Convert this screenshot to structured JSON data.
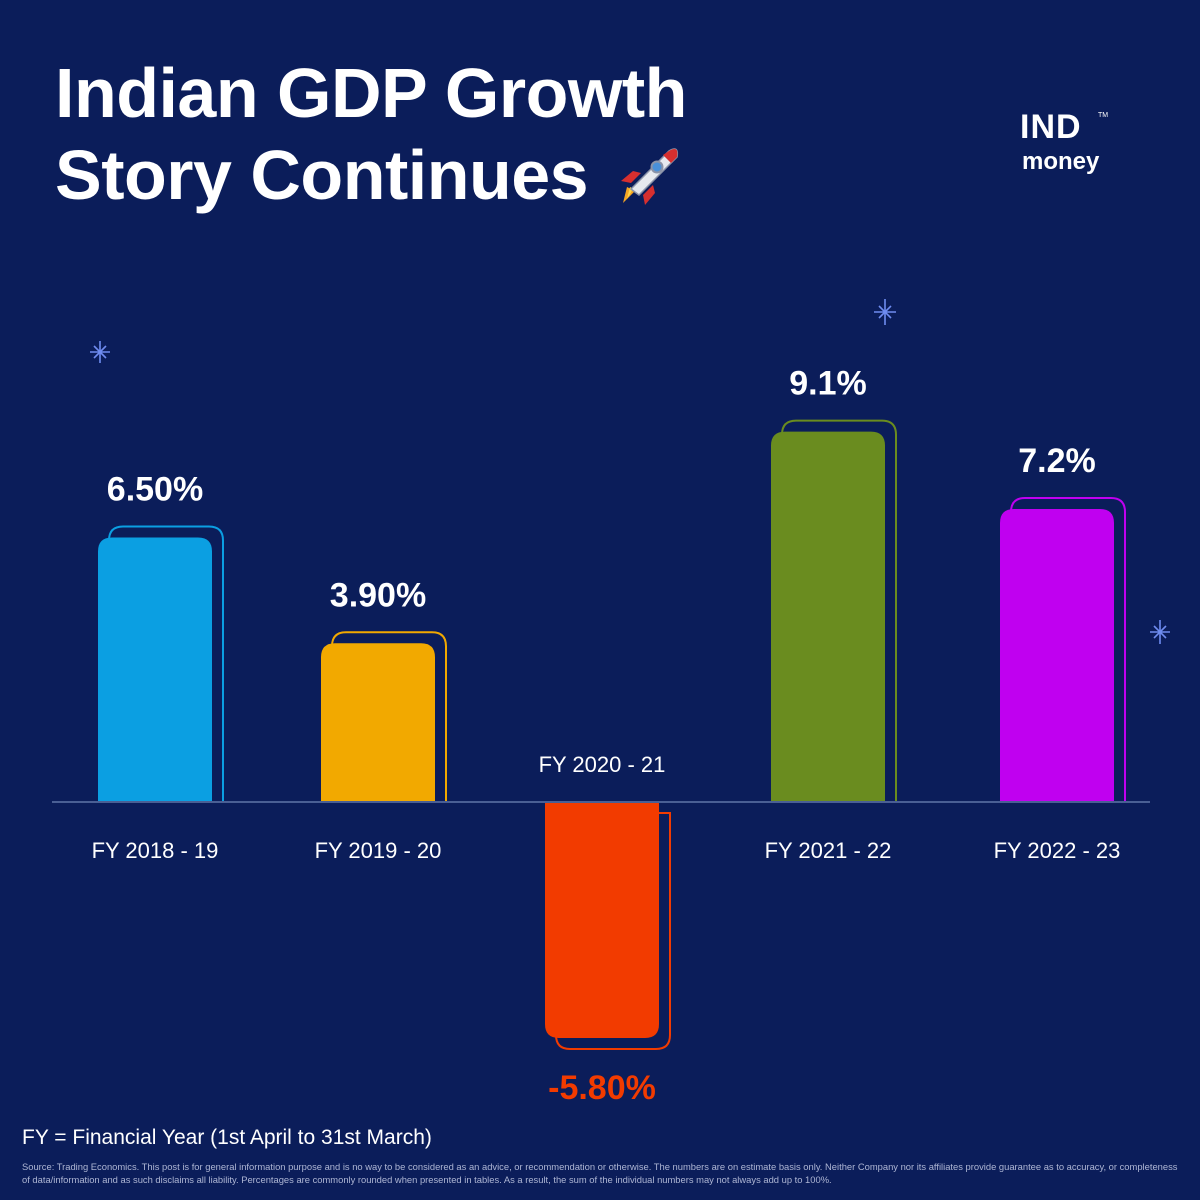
{
  "title": {
    "line1": "Indian GDP Growth",
    "line2": "Story Continues"
  },
  "title_icon": "rocket-icon",
  "logo": {
    "top": "IND",
    "bottom": "money",
    "mark": "TM"
  },
  "chart_data": {
    "type": "bar",
    "title": "Indian GDP Growth Story Continues",
    "categories": [
      "FY 2018 - 19",
      "FY 2019 - 20",
      "FY 2020 - 21",
      "FY 2021 - 22",
      "FY 2022 - 23"
    ],
    "values": [
      6.5,
      3.9,
      -5.8,
      9.1,
      7.2
    ],
    "data_labels": [
      "6.50%",
      "3.90%",
      "-5.80%",
      "9.1%",
      "7.2%"
    ],
    "colors": [
      "#0b9fe2",
      "#f2a900",
      "#f23b00",
      "#6a8c1f",
      "#c000f0"
    ],
    "xlabel": "",
    "ylabel": "",
    "ylim": [
      -5.8,
      9.1
    ],
    "grid": false,
    "baseline_color": "#4a5f94"
  },
  "footnote": "FY = Financial Year (1st April to 31st March)",
  "source": "Source: Trading Economics. This post is for general information purpose and is no way to be considered as an advice, or recommendation or otherwise. The numbers are on estimate basis only. Neither Company nor its affiliates provide guarantee as to accuracy, or completeness of data/information and as such disclaims all liability. Percentages are commonly rounded when presented in tables. As a result, the sum of the individual numbers may not always add up to 100%."
}
